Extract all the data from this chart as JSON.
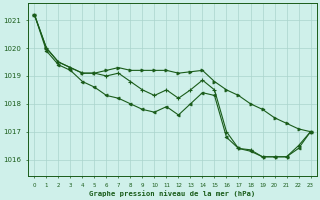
{
  "hours": [
    0,
    1,
    2,
    3,
    4,
    5,
    6,
    7,
    8,
    9,
    10,
    11,
    12,
    13,
    14,
    15,
    16,
    17,
    18,
    19,
    20,
    21,
    22,
    23
  ],
  "line1": [
    1021.2,
    1020.0,
    1019.5,
    1019.3,
    1019.1,
    1019.1,
    1019.2,
    1019.3,
    1019.2,
    1019.2,
    1019.2,
    1019.2,
    1019.1,
    1019.15,
    1019.2,
    1018.8,
    1018.5,
    1018.3,
    1018.0,
    1017.8,
    1017.5,
    1017.3,
    1017.1,
    1017.0
  ],
  "line2": [
    1021.2,
    1020.0,
    1019.5,
    1019.3,
    1019.1,
    1019.1,
    1019.0,
    1019.1,
    1018.8,
    1018.5,
    1018.3,
    1018.5,
    1018.2,
    1018.5,
    1018.85,
    1018.5,
    1017.0,
    1016.4,
    1016.35,
    1016.1,
    1016.1,
    1016.1,
    1016.5,
    1017.0
  ],
  "line3": [
    1021.2,
    1019.9,
    1019.4,
    1019.2,
    1018.8,
    1018.6,
    1018.3,
    1018.2,
    1018.0,
    1017.8,
    1017.7,
    1017.9,
    1017.6,
    1018.0,
    1018.4,
    1018.3,
    1016.8,
    1016.4,
    1016.3,
    1016.1,
    1016.1,
    1016.1,
    1016.4,
    1017.0
  ],
  "line_color": "#1a5c1a",
  "bg_color": "#cff0ea",
  "grid_color": "#aad4cc",
  "axis_color": "#1a5c1a",
  "ylabel_ticks": [
    1016,
    1017,
    1018,
    1019,
    1020,
    1021
  ],
  "xlabel_label": "Graphe pression niveau de la mer (hPa)",
  "ylim": [
    1015.4,
    1021.6
  ],
  "xlim": [
    -0.5,
    23.5
  ],
  "marker1": ">",
  "marker2": "+",
  "marker3": "<"
}
